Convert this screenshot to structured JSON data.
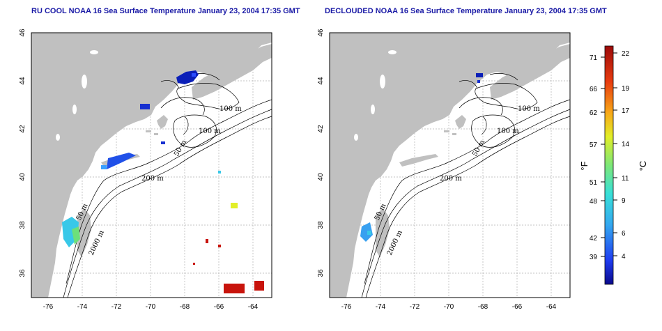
{
  "panels": [
    {
      "id": "left",
      "title": "RU COOL NOAA 16 Sea Surface Temperature January 23, 2004 17:35 GMT",
      "contour_labels": [
        "100 m",
        "100 m",
        "50 m",
        "200 m",
        "50 m",
        "2000 m"
      ]
    },
    {
      "id": "right",
      "title": "DECLOUDED NOAA 16 Sea Surface Temperature January 23, 2004 17:35 GMT",
      "contour_labels": [
        "100 m",
        "100 m",
        "50 m",
        "200 m",
        "50 m",
        "2000 m"
      ]
    }
  ],
  "map_axes": {
    "lon_ticks": [
      "-76",
      "-74",
      "-72",
      "-70",
      "-68",
      "-66",
      "-64"
    ],
    "lat_ticks": [
      "46",
      "44",
      "42",
      "40",
      "38",
      "36"
    ]
  },
  "colorbar": {
    "fahrenheit_label": "°F",
    "celsius_label": "°C",
    "fahrenheit_ticks": [
      "71",
      "66",
      "62",
      "57",
      "51",
      "48",
      "42",
      "39"
    ],
    "celsius_ticks": [
      "22",
      "19",
      "17",
      "14",
      "11",
      "9",
      "6",
      "4"
    ]
  },
  "colors": {
    "land": "#c0c0c0",
    "title": "#1a1aa6",
    "grid": "#b0b0b0",
    "cold": "#0b1fb8",
    "warm": "#c8140c"
  }
}
